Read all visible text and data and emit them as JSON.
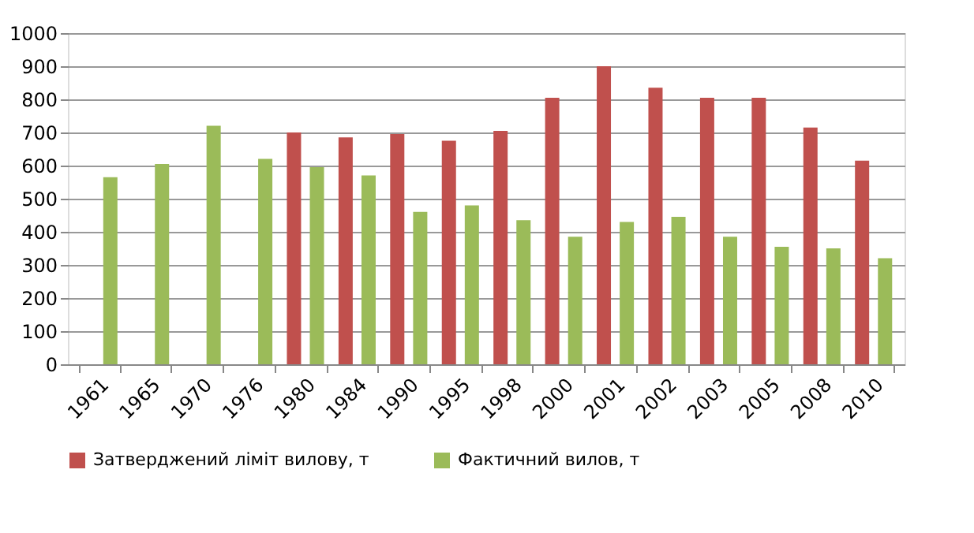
{
  "chart_data": {
    "type": "bar",
    "categories": [
      "1961",
      "1965",
      "1970",
      "1976",
      "1980",
      "1984",
      "1990",
      "1995",
      "1998",
      "2000",
      "2001",
      "2002",
      "2003",
      "2005",
      "2008",
      "2010"
    ],
    "series": [
      {
        "name": "Затверджений ліміт вилову, т",
        "color": "#c0504d",
        "values": [
          0,
          0,
          0,
          0,
          700,
          685,
          695,
          675,
          705,
          805,
          900,
          835,
          805,
          805,
          715,
          615
        ]
      },
      {
        "name": "Фактичний вилов, т",
        "color": "#9bbb59",
        "values": [
          565,
          605,
          720,
          620,
          595,
          570,
          460,
          480,
          435,
          385,
          430,
          445,
          385,
          355,
          350,
          320
        ]
      }
    ],
    "ylim": [
      0,
      1000
    ],
    "yticks": [
      0,
      100,
      200,
      300,
      400,
      500,
      600,
      700,
      800,
      900,
      1000
    ],
    "grid": "y",
    "legend": "bottom"
  }
}
